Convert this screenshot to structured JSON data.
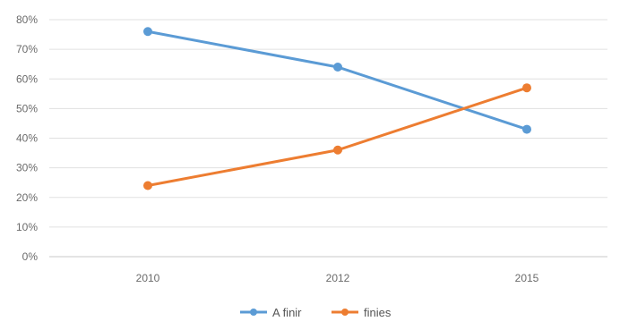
{
  "chart_data": {
    "type": "line",
    "title": "",
    "xlabel": "",
    "ylabel": "",
    "categories": [
      "2010",
      "2012",
      "2015"
    ],
    "y_ticks": [
      "0%",
      "10%",
      "20%",
      "30%",
      "40%",
      "50%",
      "60%",
      "70%",
      "80%"
    ],
    "ylim": [
      0,
      80
    ],
    "grid": true,
    "legend_position": "bottom",
    "series": [
      {
        "name": "A finir",
        "values": [
          76,
          64,
          43
        ],
        "color": "#5B9BD5",
        "marker": "circle"
      },
      {
        "name": "finies",
        "values": [
          24,
          36,
          57
        ],
        "color": "#ED7D31",
        "marker": "circle"
      }
    ]
  }
}
